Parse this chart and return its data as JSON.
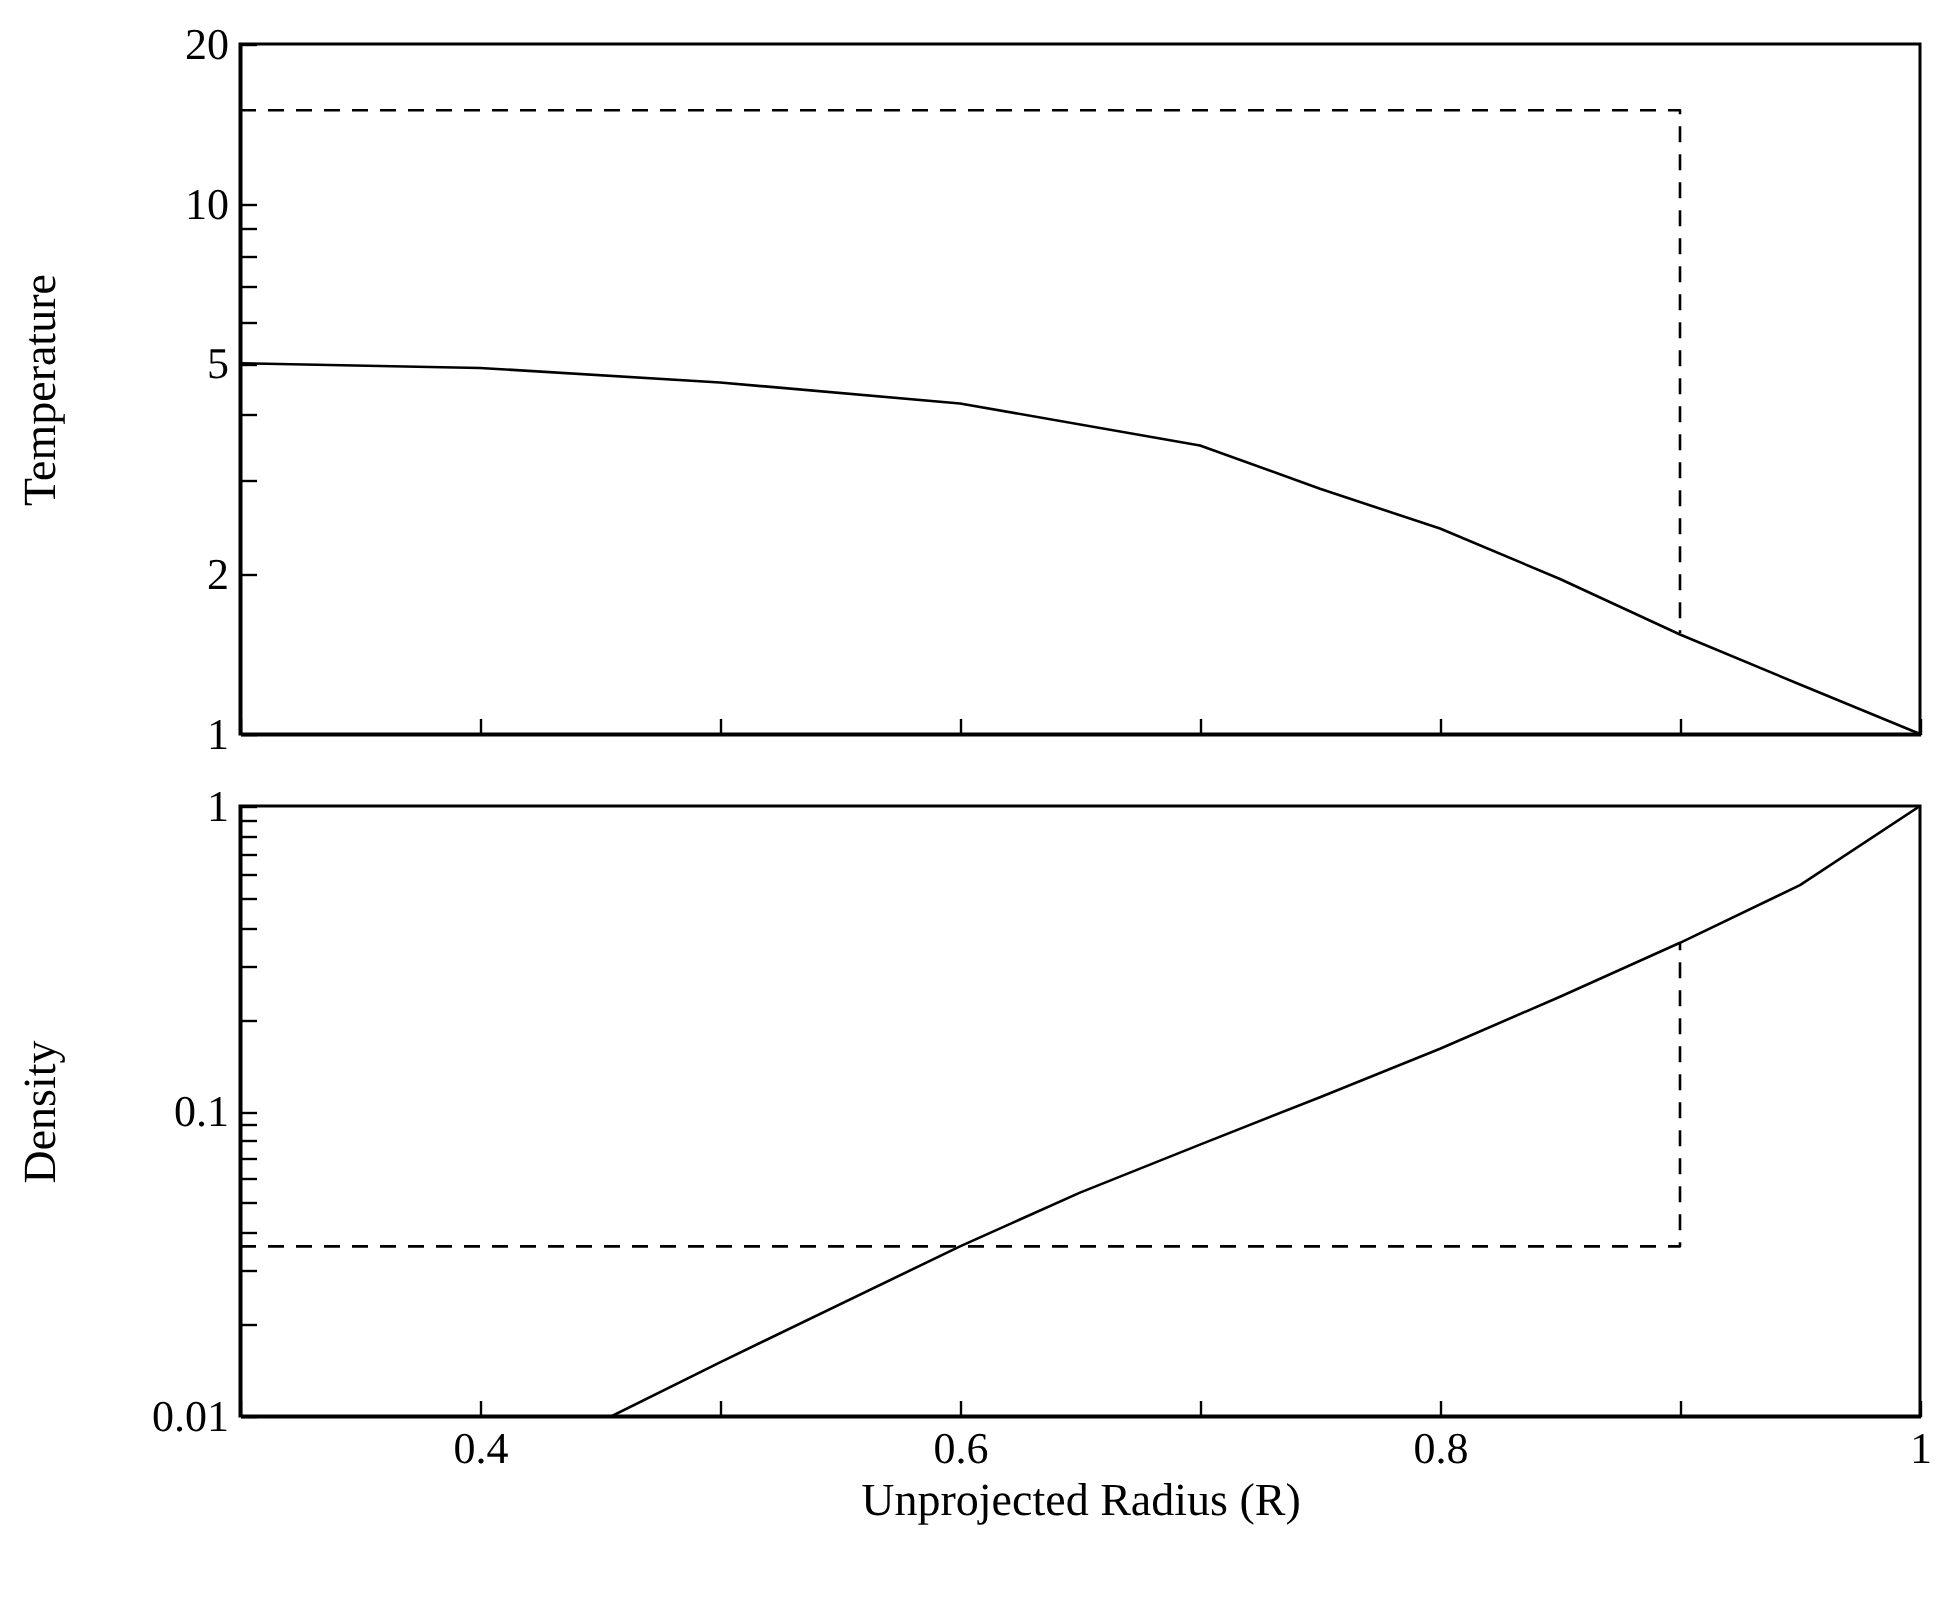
{
  "chart_data": [
    {
      "type": "line",
      "ylabel": "Temperature",
      "log": "y",
      "xlim": [
        0.3,
        1
      ],
      "xticks": [
        {
          "value": 0.3,
          "label": null
        },
        0.4,
        {
          "value": 0.5,
          "label": null
        },
        0.6,
        {
          "value": 0.7,
          "label": null
        },
        0.8,
        {
          "value": 0.9,
          "label": null
        },
        1
      ],
      "ylim": [
        1,
        20
      ],
      "yticks": [
        1,
        2,
        {
          "value": 3,
          "label": null
        },
        {
          "value": 4,
          "label": null
        },
        5,
        {
          "value": 6,
          "label": null
        },
        {
          "value": 7,
          "label": null
        },
        {
          "value": 8,
          "label": null
        },
        {
          "value": 9,
          "label": null
        },
        10,
        20
      ],
      "tick_labels": "y",
      "series": [
        {
          "color": "#000000",
          "line_style": "solid",
          "x": [
            0.3,
            0.4,
            0.5,
            0.6,
            0.7,
            0.75,
            0.8,
            0.85,
            0.9,
            0.95,
            1.0
          ],
          "values": [
            5.0,
            4.9,
            4.6,
            4.2,
            3.5,
            2.9,
            2.44,
            1.96,
            1.54,
            1.24,
            1.0
          ]
        },
        {
          "color": "#000000",
          "line_style": "dashed",
          "x": [
            0.3,
            0.9,
            0.9
          ],
          "values": [
            15,
            15,
            1.55
          ]
        }
      ]
    },
    {
      "type": "line",
      "xlabel": "Unprojected Radius (R)",
      "ylabel": "Density",
      "log": "y",
      "xlim": [
        0.3,
        1
      ],
      "xticks": [
        {
          "value": 0.3,
          "label": null
        },
        0.4,
        {
          "value": 0.5,
          "label": null
        },
        0.6,
        {
          "value": 0.7,
          "label": null
        },
        0.8,
        {
          "value": 0.9,
          "label": null
        },
        1
      ],
      "ylim": [
        0.01,
        1
      ],
      "yticks": [
        0.01,
        {
          "value": 0.02,
          "label": null
        },
        {
          "value": 0.03,
          "label": null
        },
        {
          "value": 0.04,
          "label": null
        },
        {
          "value": 0.05,
          "label": null
        },
        {
          "value": 0.06,
          "label": null
        },
        {
          "value": 0.07,
          "label": null
        },
        {
          "value": 0.08,
          "label": null
        },
        {
          "value": 0.09,
          "label": null
        },
        0.1,
        {
          "value": 0.2,
          "label": null
        },
        {
          "value": 0.3,
          "label": null
        },
        {
          "value": 0.4,
          "label": null
        },
        {
          "value": 0.5,
          "label": null
        },
        {
          "value": 0.6,
          "label": null
        },
        {
          "value": 0.7,
          "label": null
        },
        {
          "value": 0.8,
          "label": null
        },
        {
          "value": 0.9,
          "label": null
        },
        1
      ],
      "series": [
        {
          "color": "#000000",
          "line_style": "solid",
          "x": [
            0.455,
            0.5,
            0.6,
            0.65,
            0.7,
            0.75,
            0.8,
            0.85,
            0.9,
            0.95,
            1.0
          ],
          "values": [
            0.01,
            0.015,
            0.036,
            0.054,
            0.0776,
            0.111,
            0.16,
            0.237,
            0.356,
            0.55,
            1.0
          ]
        },
        {
          "color": "#000000",
          "line_style": "dashed",
          "x": [
            0.3,
            0.9,
            0.9
          ],
          "values": [
            0.036,
            0.036,
            0.356
          ]
        }
      ]
    }
  ]
}
